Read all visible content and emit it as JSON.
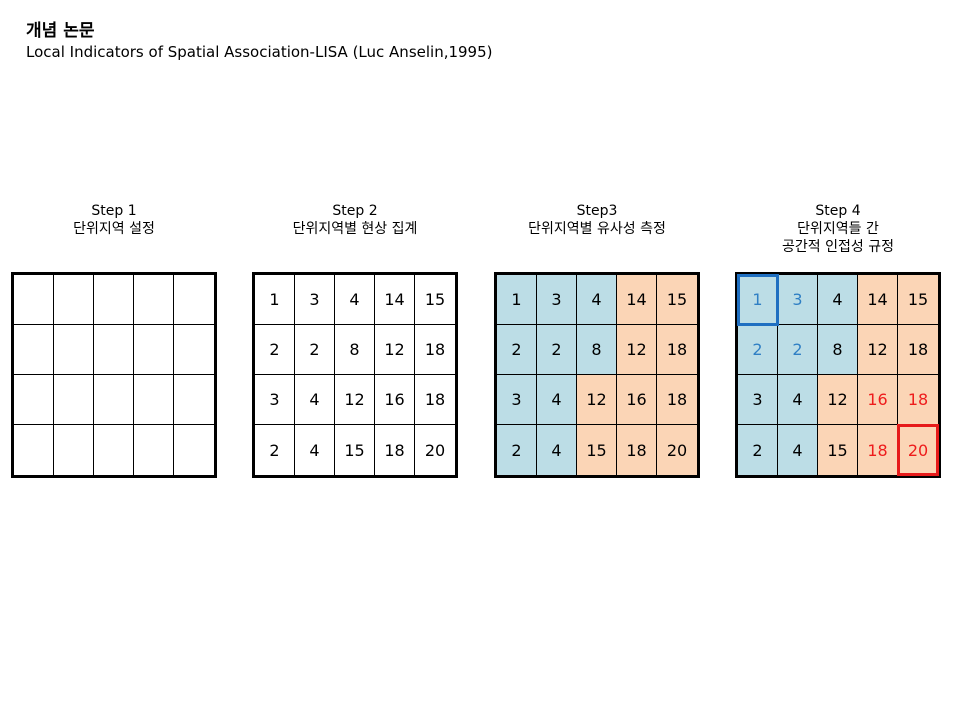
{
  "header": {
    "title": "개념 논문",
    "subtitle": "Local Indicators of Spatial Association-LISA (Luc Anselin,1995)"
  },
  "colors": {
    "similar_fill": "#bcdde6",
    "dissimilar_fill": "#fbd5b6",
    "blue_text": "#2f7fc4",
    "red_text": "#ee1c1c",
    "blue_highlight": "#1f6fc1",
    "red_highlight": "#e61b1b"
  },
  "steps": [
    {
      "title": "Step 1",
      "caption_lines": [
        "단위지역 설정"
      ],
      "values": [
        [
          "",
          "",
          "",
          "",
          ""
        ],
        [
          "",
          "",
          "",
          "",
          ""
        ],
        [
          "",
          "",
          "",
          "",
          ""
        ],
        [
          "",
          "",
          "",
          "",
          ""
        ]
      ]
    },
    {
      "title": "Step 2",
      "caption_lines": [
        "단위지역별 현상 집계"
      ],
      "values": [
        [
          "1",
          "3",
          "4",
          "14",
          "15"
        ],
        [
          "2",
          "2",
          "8",
          "12",
          "18"
        ],
        [
          "3",
          "4",
          "12",
          "16",
          "18"
        ],
        [
          "2",
          "4",
          "15",
          "18",
          "20"
        ]
      ]
    },
    {
      "title": "Step3",
      "caption_lines": [
        "단위지역별 유사성 측정"
      ],
      "values": [
        [
          "1",
          "3",
          "4",
          "14",
          "15"
        ],
        [
          "2",
          "2",
          "8",
          "12",
          "18"
        ],
        [
          "3",
          "4",
          "12",
          "16",
          "18"
        ],
        [
          "2",
          "4",
          "15",
          "18",
          "20"
        ]
      ],
      "fills": [
        [
          "similar",
          "similar",
          "similar",
          "dissimilar",
          "dissimilar"
        ],
        [
          "similar",
          "similar",
          "similar",
          "dissimilar",
          "dissimilar"
        ],
        [
          "similar",
          "similar",
          "dissimilar",
          "dissimilar",
          "dissimilar"
        ],
        [
          "similar",
          "similar",
          "dissimilar",
          "dissimilar",
          "dissimilar"
        ]
      ]
    },
    {
      "title": "Step 4",
      "caption_lines": [
        "단위지역들 간",
        "공간적 인접성 규정"
      ],
      "values": [
        [
          "1",
          "3",
          "4",
          "14",
          "15"
        ],
        [
          "2",
          "2",
          "8",
          "12",
          "18"
        ],
        [
          "3",
          "4",
          "12",
          "16",
          "18"
        ],
        [
          "2",
          "4",
          "15",
          "18",
          "20"
        ]
      ],
      "fills": [
        [
          "similar",
          "similar",
          "similar",
          "dissimilar",
          "dissimilar"
        ],
        [
          "similar",
          "similar",
          "similar",
          "dissimilar",
          "dissimilar"
        ],
        [
          "similar",
          "similar",
          "dissimilar",
          "dissimilar",
          "dissimilar"
        ],
        [
          "similar",
          "similar",
          "dissimilar",
          "dissimilar",
          "dissimilar"
        ]
      ],
      "text_colors": [
        [
          "blue",
          "blue",
          "",
          "",
          ""
        ],
        [
          "blue",
          "blue",
          "",
          "",
          ""
        ],
        [
          "",
          "",
          "",
          "red",
          "red"
        ],
        [
          "",
          "",
          "",
          "red",
          "red"
        ]
      ],
      "highlighted_cells": [
        {
          "row": 1,
          "col": 1,
          "color": "blue"
        },
        {
          "row": 4,
          "col": 5,
          "color": "red"
        }
      ]
    }
  ]
}
